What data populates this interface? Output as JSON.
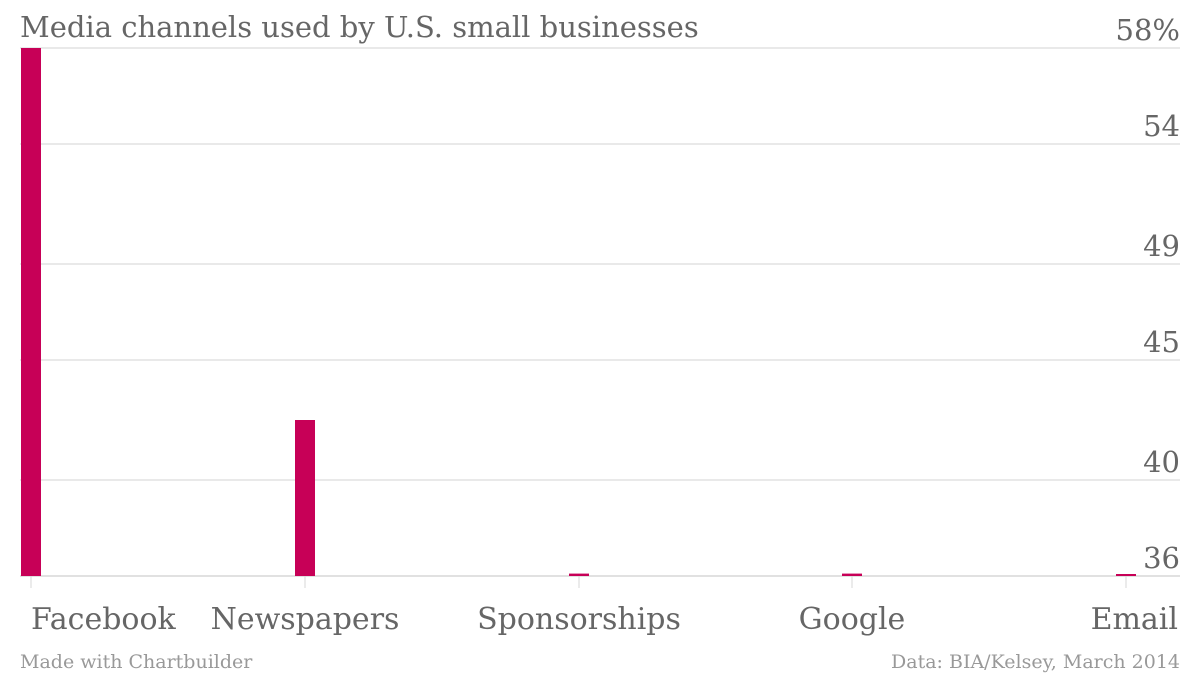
{
  "chart_data": {
    "type": "bar",
    "title": "Media channels used by U.S. small businesses",
    "categories": [
      "Facebook",
      "Newspapers",
      "Sponsorships",
      "Google",
      "Email"
    ],
    "values": [
      58,
      42.5,
      36.1,
      36.1,
      36
    ],
    "y_tick_values": [
      36,
      40,
      45,
      49,
      54,
      58
    ],
    "y_tick_labels": [
      "36",
      "40",
      "45",
      "49",
      "54",
      "58%"
    ],
    "ylim": [
      36,
      58
    ],
    "axis_position": "right",
    "grid": true,
    "bar_color": "#c70057",
    "text_color": "#666666"
  },
  "footer": {
    "left": "Made with Chartbuilder",
    "right": "Data: BIA/Kelsey, March 2014"
  }
}
